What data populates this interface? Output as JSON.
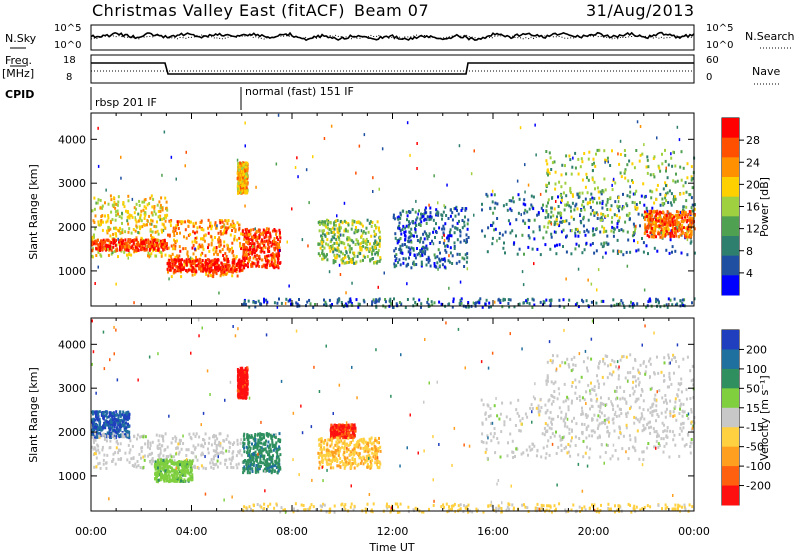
{
  "header": {
    "title": "Christmas Valley East (fitACF)",
    "beam": "Beam 07",
    "date": "31/Aug/2013"
  },
  "strips": {
    "nsky_label": "N.Sky",
    "nsearch_label": "N.Search",
    "noise_ticks": [
      "10^5",
      "10^0"
    ],
    "freq_label": "Freq.",
    "freq_unit": "[MHz]",
    "freq_ticks": [
      "18",
      "8"
    ],
    "nave_label": "Nave",
    "nave_ticks": [
      "60",
      "0"
    ],
    "cpid_label": "CPID",
    "programs": [
      {
        "name": "rbsp 201 IF",
        "start_hour": 0,
        "end_hour": 6
      },
      {
        "name": "normal (fast) 151 IF",
        "start_hour": 6,
        "end_hour": 24
      }
    ]
  },
  "colors": {
    "power_scale": [
      "#0000ff",
      "#1f4fa0",
      "#2f7f6f",
      "#4fa050",
      "#9fd040",
      "#ffd000",
      "#ff9000",
      "#ff5000",
      "#ff0000"
    ],
    "velocity_scale": [
      "#1f3fbf",
      "#1f6f9f",
      "#2f8f5f",
      "#7fcf3f",
      "#c8c8c8",
      "#ffd040",
      "#ff9f20",
      "#ff6010",
      "#ff1010"
    ]
  },
  "chart_data": [
    {
      "type": "heatmap",
      "panel": "power",
      "ylabel": "Slant Range [km]",
      "xlabel": "Time UT",
      "xlim_hours": [
        0,
        24
      ],
      "ylim": [
        200,
        4600
      ],
      "yticks": [
        "4000",
        "3000",
        "2000",
        "1000"
      ],
      "xticks": [
        "00:00",
        "04:00",
        "08:00",
        "12:00",
        "16:00",
        "20:00",
        "00:00"
      ],
      "colorbar": {
        "label": "Power [dB]",
        "ticks": [
          "28",
          "24",
          "20",
          "16",
          "12",
          "8",
          "4"
        ],
        "range": [
          0,
          30
        ]
      },
      "regions": [
        {
          "t_start": 0.0,
          "t_end": 3.0,
          "r_low": 1350,
          "r_high": 2750,
          "value": 18
        },
        {
          "t_start": 0.0,
          "t_end": 3.0,
          "r_low": 1500,
          "r_high": 1750,
          "value": 27
        },
        {
          "t_start": 3.0,
          "t_end": 6.0,
          "r_low": 900,
          "r_high": 2200,
          "value": 22
        },
        {
          "t_start": 3.0,
          "t_end": 6.0,
          "r_low": 1000,
          "r_high": 1300,
          "value": 28
        },
        {
          "t_start": 5.8,
          "t_end": 6.2,
          "r_low": 2800,
          "r_high": 3500,
          "value": 20
        },
        {
          "t_start": 6.0,
          "t_end": 7.5,
          "r_low": 1100,
          "r_high": 2000,
          "value": 26
        },
        {
          "t_start": 9.0,
          "t_end": 11.5,
          "r_low": 1200,
          "r_high": 2200,
          "value": 14
        },
        {
          "t_start": 12.0,
          "t_end": 15.0,
          "r_low": 1100,
          "r_high": 2500,
          "value": 6
        },
        {
          "t_start": 15.5,
          "t_end": 24.0,
          "r_low": 1400,
          "r_high": 2800,
          "value": 6
        },
        {
          "t_start": 18.0,
          "t_end": 24.0,
          "r_low": 1900,
          "r_high": 3800,
          "value": 14
        },
        {
          "t_start": 22.0,
          "t_end": 24.0,
          "r_low": 1800,
          "r_high": 2400,
          "value": 24
        },
        {
          "t_start": 6.0,
          "t_end": 24.0,
          "r_low": 200,
          "r_high": 400,
          "value": 6
        }
      ]
    },
    {
      "type": "heatmap",
      "panel": "velocity",
      "ylabel": "Slant Range [km]",
      "xlabel": "Time UT",
      "xlim_hours": [
        0,
        24
      ],
      "ylim": [
        200,
        4600
      ],
      "yticks": [
        "4000",
        "3000",
        "2000",
        "1000"
      ],
      "xticks": [
        "00:00",
        "04:00",
        "08:00",
        "12:00",
        "16:00",
        "20:00",
        "00:00"
      ],
      "colorbar": {
        "label": "Velocity [m s⁻¹]",
        "ticks": [
          "200",
          "100",
          "50",
          "15",
          "-15",
          "-50",
          "-100",
          "-200"
        ],
        "range": [
          -250,
          250
        ]
      },
      "regions": [
        {
          "t_start": 0.0,
          "t_end": 1.5,
          "r_low": 1900,
          "r_high": 2500,
          "value": 200
        },
        {
          "t_start": 0.0,
          "t_end": 6.0,
          "r_low": 1200,
          "r_high": 2000,
          "value": 0
        },
        {
          "t_start": 2.5,
          "t_end": 4.0,
          "r_low": 900,
          "r_high": 1400,
          "value": 60
        },
        {
          "t_start": 5.8,
          "t_end": 6.2,
          "r_low": 2800,
          "r_high": 3500,
          "value": -220
        },
        {
          "t_start": 6.0,
          "t_end": 7.5,
          "r_low": 1100,
          "r_high": 2000,
          "value": 120
        },
        {
          "t_start": 9.5,
          "t_end": 10.5,
          "r_low": 1900,
          "r_high": 2200,
          "value": -200
        },
        {
          "t_start": 9.0,
          "t_end": 11.5,
          "r_low": 1200,
          "r_high": 1900,
          "value": -70
        },
        {
          "t_start": 15.5,
          "t_end": 24.0,
          "r_low": 1400,
          "r_high": 2800,
          "value": 0
        },
        {
          "t_start": 18.0,
          "t_end": 24.0,
          "r_low": 1900,
          "r_high": 3800,
          "value": 0
        },
        {
          "t_start": 6.0,
          "t_end": 24.0,
          "r_low": 200,
          "r_high": 400,
          "value": -40
        }
      ]
    }
  ]
}
